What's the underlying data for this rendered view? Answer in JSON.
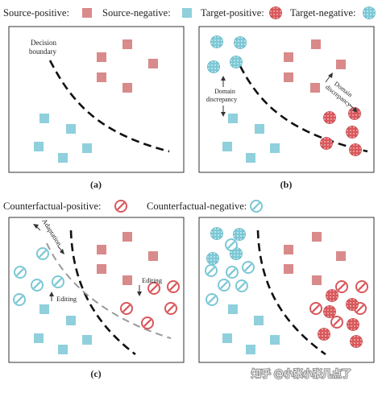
{
  "legend_top": {
    "source_positive": "Source-positive:",
    "source_negative": "Source-negative:",
    "target_positive": "Target-positive:",
    "target_negative": "Target-negative:"
  },
  "legend_mid": {
    "counterfactual_positive": "Counterfactual-positive:",
    "counterfactual_negative": "Counterfactual-negative:"
  },
  "panel_a": {
    "caption": "(a)",
    "boundary_label_line1": "Decision",
    "boundary_label_line2": "boundary"
  },
  "panel_b": {
    "caption": "(b)",
    "discrepancy_left_line1": "Domain",
    "discrepancy_left_line2": "discrepancy",
    "discrepancy_right_line1": "Domain",
    "discrepancy_right_line2": "discrepancy"
  },
  "panel_c": {
    "caption": "(c)",
    "adaptation": "Adaptation",
    "editing_left": "Editing",
    "editing_right": "Editing"
  },
  "watermark": "知乎 @小张小张几点了",
  "colors": {
    "source_positive": "#d98a8a",
    "source_negative": "#8fd0dc",
    "target_positive": "#d9585c",
    "target_negative": "#7cc8d6",
    "boundary": "#111111",
    "boundary_c_gray": "#999999"
  }
}
